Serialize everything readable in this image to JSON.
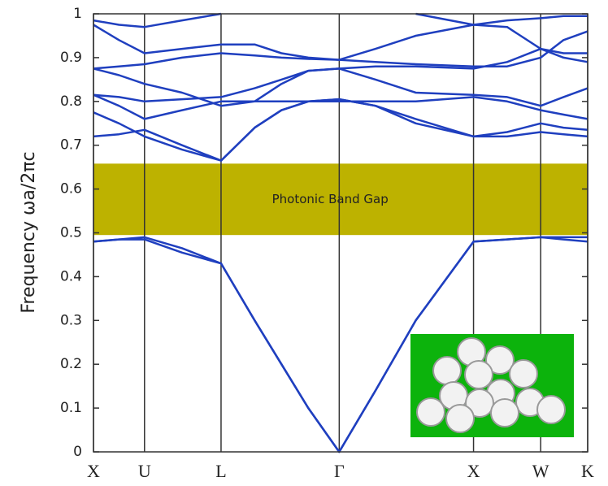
{
  "chart_data": {
    "type": "line",
    "y_label": "Frequency ωa/2πc",
    "x": [
      0,
      0.19,
      0.38,
      0.66,
      0.95,
      1.2,
      1.4,
      1.6,
      1.83,
      2.1,
      2.4,
      2.83,
      3.08,
      3.33,
      3.5,
      3.68
    ],
    "xlim": [
      0,
      3.68
    ],
    "xticks": [
      {
        "value": 0,
        "label": "X"
      },
      {
        "value": 0.38,
        "label": "U"
      },
      {
        "value": 0.95,
        "label": "L"
      },
      {
        "value": 1.83,
        "label": "Γ"
      },
      {
        "value": 2.83,
        "label": "X"
      },
      {
        "value": 3.33,
        "label": "W"
      },
      {
        "value": 3.68,
        "label": "K"
      }
    ],
    "ylim": [
      0,
      1
    ],
    "yticks": [
      0,
      0.1,
      0.2,
      0.3,
      0.4,
      0.5,
      0.6,
      0.7,
      0.8,
      0.9,
      1
    ],
    "shaded_band": {
      "range": [
        0.495,
        0.658
      ],
      "color": "#bdb200",
      "label": "Photonic Band Gap"
    },
    "series": [
      {
        "color": "#1f3fbf",
        "values": [
          0.48,
          0.485,
          0.485,
          0.455,
          0.43,
          0.3,
          0.2,
          0.1,
          0,
          0.14,
          0.3,
          0.48,
          0.485,
          0.49,
          0.485,
          0.48
        ]
      },
      {
        "color": "#1f3fbf",
        "values": [
          0.48,
          0.485,
          0.49,
          0.465,
          0.43,
          0.3,
          0.2,
          0.1,
          0,
          0.14,
          0.3,
          0.48,
          0.485,
          0.49,
          0.49,
          0.49
        ]
      },
      {
        "color": "#1f3fbf",
        "values": [
          0.72,
          0.725,
          0.735,
          0.7,
          0.665,
          0.74,
          0.78,
          0.8,
          0.805,
          0.79,
          0.75,
          0.72,
          0.72,
          0.73,
          0.725,
          0.72
        ]
      },
      {
        "color": "#1f3fbf",
        "values": [
          0.775,
          0.75,
          0.72,
          0.69,
          0.665,
          0.74,
          0.78,
          0.8,
          0.805,
          0.79,
          0.76,
          0.72,
          0.73,
          0.75,
          0.74,
          0.735
        ]
      },
      {
        "color": "#1f3fbf",
        "values": [
          0.815,
          0.79,
          0.76,
          0.78,
          0.8,
          0.8,
          0.8,
          0.8,
          0.8,
          0.8,
          0.8,
          0.81,
          0.8,
          0.78,
          0.77,
          0.76
        ]
      },
      {
        "color": "#1f3fbf",
        "values": [
          0.815,
          0.81,
          0.8,
          0.805,
          0.81,
          0.83,
          0.85,
          0.87,
          0.875,
          0.85,
          0.82,
          0.815,
          0.81,
          0.79,
          0.81,
          0.83
        ]
      },
      {
        "color": "#1f3fbf",
        "values": [
          0.875,
          0.86,
          0.84,
          0.82,
          0.79,
          0.8,
          0.84,
          0.87,
          0.875,
          0.88,
          0.88,
          0.875,
          0.89,
          0.92,
          0.9,
          0.89
        ]
      },
      {
        "color": "#1f3fbf",
        "values": [
          0.875,
          0.88,
          0.885,
          0.9,
          0.91,
          0.905,
          0.9,
          0.897,
          0.895,
          0.92,
          0.95,
          0.975,
          0.97,
          0.92,
          0.91,
          0.91
        ]
      },
      {
        "color": "#1f3fbf",
        "values": [
          0.975,
          0.94,
          0.91,
          0.92,
          0.93,
          0.93,
          0.91,
          0.9,
          0.895,
          0.89,
          0.885,
          0.88,
          0.88,
          0.9,
          0.94,
          0.96
        ]
      },
      {
        "color": "#1f3fbf",
        "values": [
          0.985,
          0.975,
          0.97,
          0.985,
          1.0,
          null,
          null,
          null,
          null,
          null,
          1.0,
          0.975,
          0.985,
          0.99,
          0.995,
          0.995
        ]
      }
    ]
  }
}
